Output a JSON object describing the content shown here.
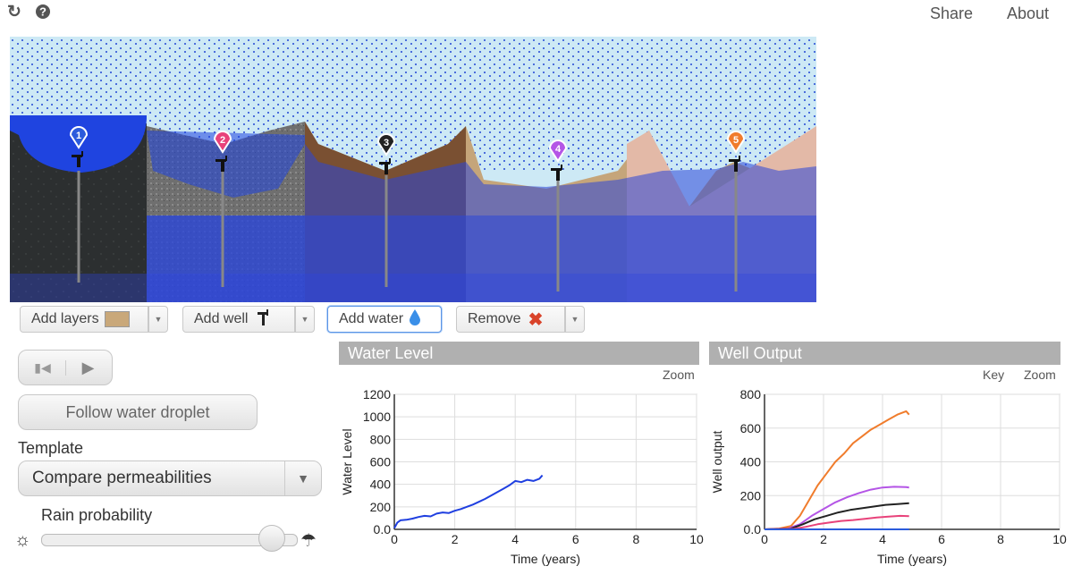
{
  "topbar": {
    "reload_icon": "reload-icon",
    "help_icon": "help-icon",
    "share": "Share",
    "about": "About"
  },
  "toolbar": {
    "add_layers": "Add layers",
    "add_well": "Add well",
    "add_water": "Add water",
    "remove": "Remove"
  },
  "wells": [
    "1",
    "2",
    "3",
    "4",
    "5"
  ],
  "well_colors": [
    "#2b5bdc",
    "#e8427a",
    "#222222",
    "#b455e6",
    "#f07c2c"
  ],
  "controls": {
    "follow_label": "Follow water droplet",
    "template_label": "Template",
    "template_value": "Compare permeabilities",
    "rain_label": "Rain probability",
    "rain_value": 0.9
  },
  "panels": {
    "water_level": {
      "title": "Water Level",
      "zoom": "Zoom"
    },
    "well_output": {
      "title": "Well Output",
      "key": "Key",
      "zoom": "Zoom"
    }
  },
  "chart_data": [
    {
      "type": "line",
      "title": "Water Level",
      "xlabel": "Time (years)",
      "ylabel": "Water Level",
      "xlim": [
        0,
        10
      ],
      "ylim": [
        0,
        1200
      ],
      "xticks": [
        "0",
        "2",
        "4",
        "6",
        "8",
        "10"
      ],
      "yticks": [
        "0.0",
        "200",
        "400",
        "600",
        "800",
        "1000",
        "1200"
      ],
      "grid": true,
      "series": [
        {
          "color": "#1f3fe0",
          "x": [
            0,
            0.1,
            0.2,
            0.4,
            0.6,
            0.8,
            1.0,
            1.2,
            1.4,
            1.6,
            1.8,
            2.0,
            2.2,
            2.4,
            2.6,
            2.8,
            3.0,
            3.2,
            3.4,
            3.6,
            3.8,
            4.0,
            4.2,
            4.4,
            4.6,
            4.8,
            4.9
          ],
          "y": [
            10,
            60,
            80,
            85,
            95,
            110,
            120,
            115,
            140,
            150,
            145,
            165,
            180,
            200,
            220,
            245,
            270,
            300,
            330,
            360,
            390,
            430,
            420,
            440,
            430,
            450,
            480
          ]
        }
      ]
    },
    {
      "type": "line",
      "title": "Well Output",
      "xlabel": "Time (years)",
      "ylabel": "Well output",
      "xlim": [
        0,
        10
      ],
      "ylim": [
        0,
        800
      ],
      "xticks": [
        "0",
        "2",
        "4",
        "6",
        "8",
        "10"
      ],
      "yticks": [
        "0.0",
        "200",
        "400",
        "600",
        "800"
      ],
      "grid": true,
      "series": [
        {
          "color": "#f07c2c",
          "x": [
            0,
            0.5,
            0.9,
            1.2,
            1.5,
            1.8,
            2.1,
            2.4,
            2.7,
            3.0,
            3.3,
            3.6,
            3.9,
            4.2,
            4.5,
            4.8,
            4.9
          ],
          "y": [
            0,
            5,
            20,
            80,
            170,
            260,
            330,
            400,
            450,
            510,
            550,
            590,
            620,
            650,
            680,
            700,
            680
          ]
        },
        {
          "color": "#b455e6",
          "x": [
            0,
            0.8,
            1.2,
            1.6,
            2.0,
            2.4,
            2.8,
            3.2,
            3.6,
            4.0,
            4.4,
            4.8,
            4.9
          ],
          "y": [
            0,
            5,
            30,
            80,
            120,
            160,
            190,
            215,
            235,
            248,
            252,
            250,
            248
          ]
        },
        {
          "color": "#222222",
          "x": [
            0,
            0.9,
            1.3,
            1.7,
            2.1,
            2.5,
            2.9,
            3.3,
            3.7,
            4.1,
            4.5,
            4.9
          ],
          "y": [
            0,
            5,
            30,
            60,
            80,
            100,
            115,
            125,
            135,
            145,
            150,
            155
          ]
        },
        {
          "color": "#e8427a",
          "x": [
            0,
            1.0,
            1.4,
            1.8,
            2.2,
            2.6,
            3.0,
            3.4,
            3.8,
            4.2,
            4.6,
            4.9
          ],
          "y": [
            0,
            3,
            15,
            30,
            40,
            50,
            55,
            62,
            70,
            75,
            80,
            78
          ]
        },
        {
          "color": "#2b5bdc",
          "x": [
            0,
            2,
            4,
            4.9
          ],
          "y": [
            0,
            0,
            0,
            0
          ]
        }
      ]
    }
  ]
}
